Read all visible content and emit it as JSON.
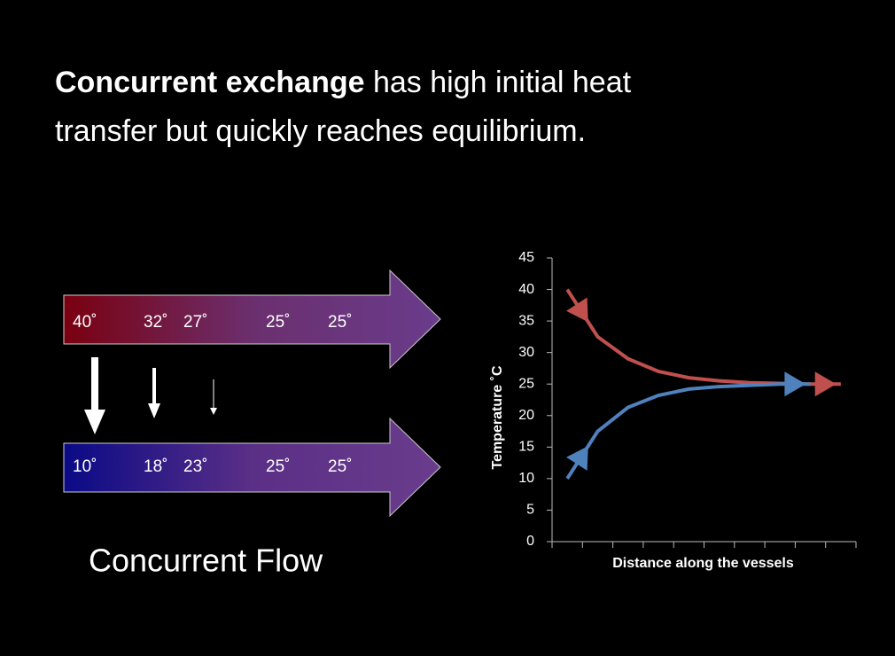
{
  "title": {
    "bold": "Concurrent exchange",
    "rest": " has high initial heat",
    "line2": "transfer but quickly reaches equilibrium."
  },
  "diagram": {
    "top_labels": [
      "40˚",
      "32˚",
      "27˚",
      "25˚",
      "25˚"
    ],
    "bottom_labels": [
      "10˚",
      "18˚",
      "23˚",
      "25˚",
      "25˚"
    ],
    "caption": "Concurrent Flow"
  },
  "chart_data": {
    "type": "line",
    "x_label": "Distance along the vessels",
    "y_label": "Temperature ˚C",
    "categories": [
      null,
      null,
      null,
      null,
      null,
      null,
      null,
      null,
      null,
      null
    ],
    "series": [
      {
        "color": "#c0504d",
        "values": [
          40,
          32.5,
          29,
          27,
          26,
          25.5,
          25.2,
          25.1,
          25,
          25
        ]
      },
      {
        "color": "#4f81bd",
        "values": [
          10,
          17.5,
          21.3,
          23.2,
          24.2,
          24.6,
          24.8,
          25,
          25,
          null
        ]
      }
    ],
    "ylim": [
      0,
      45
    ],
    "yticks": [
      0,
      5,
      10,
      15,
      20,
      25,
      30,
      35,
      40,
      45
    ],
    "grid": false
  }
}
